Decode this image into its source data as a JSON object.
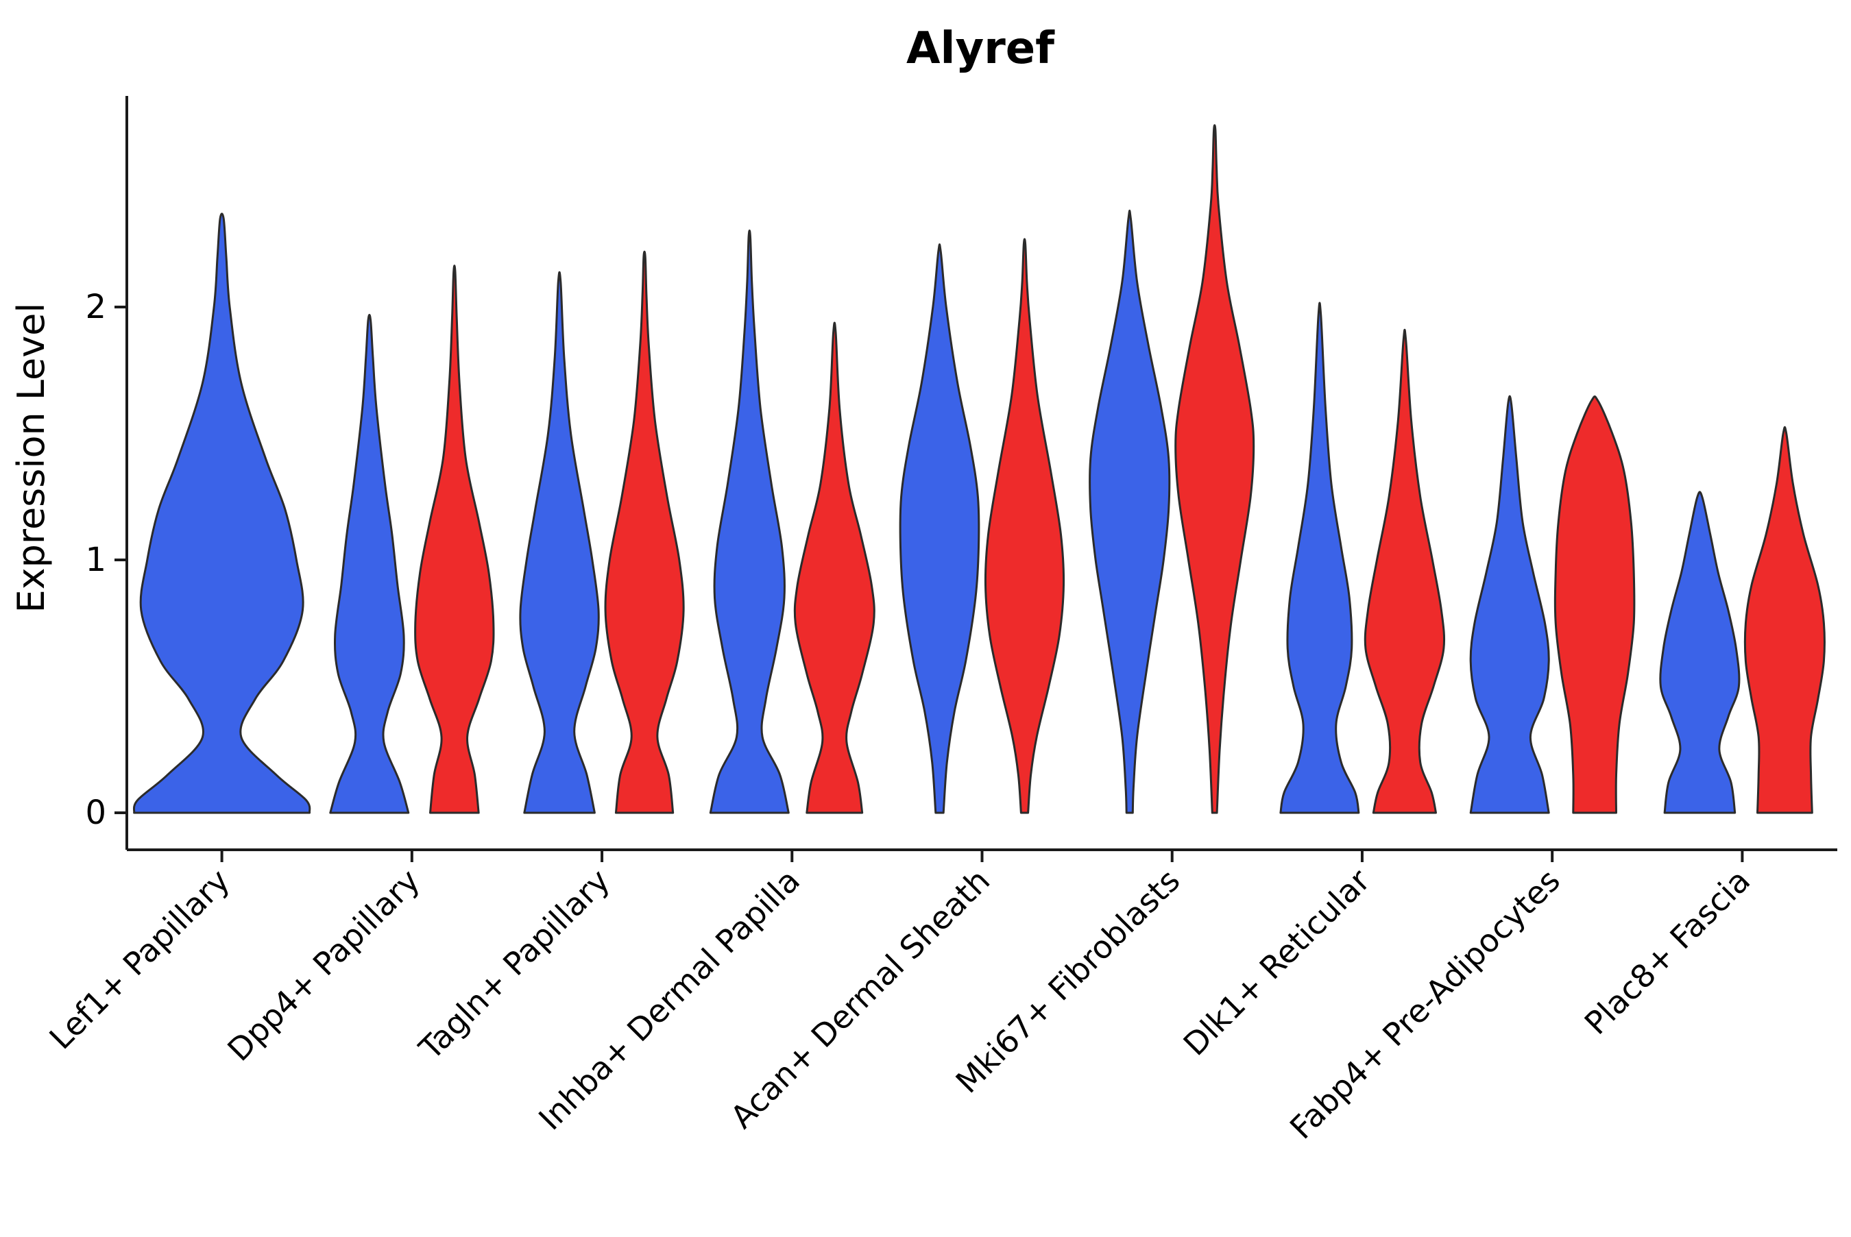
{
  "chart_data": {
    "type": "violin",
    "title": "Alyref",
    "ylabel": "Expression Level",
    "xlabel": "",
    "yticks": [
      0,
      1,
      2
    ],
    "ylim": [
      0,
      2.9
    ],
    "grid": false,
    "legend": "none",
    "colors": {
      "blue": "#3B63E8",
      "red": "#EE2B2B",
      "outline": "#2B2B2B"
    },
    "categories": [
      "Lef1+ Papillary",
      "Dpp4+ Papillary",
      "Tagln+ Papillary",
      "Inhba+ Dermal Papilla",
      "Acan+ Dermal Sheath",
      "Mki67+ Fibroblasts",
      "Dlk1+ Reticular",
      "Fabp4+ Pre-Adipocytes",
      "Plac8+ Fascia"
    ],
    "groups": [
      {
        "label": "Lef1+ Papillary",
        "violins": [
          {
            "split": "blue",
            "max": 2.35,
            "profile": [
              [
                0,
                1.0
              ],
              [
                0.05,
                0.96
              ],
              [
                0.15,
                0.62
              ],
              [
                0.3,
                0.22
              ],
              [
                0.45,
                0.38
              ],
              [
                0.6,
                0.7
              ],
              [
                0.8,
                0.92
              ],
              [
                1.0,
                0.85
              ],
              [
                1.2,
                0.72
              ],
              [
                1.4,
                0.5
              ],
              [
                1.7,
                0.22
              ],
              [
                2.0,
                0.09
              ],
              [
                2.2,
                0.05
              ],
              [
                2.35,
                0.02
              ]
            ]
          }
        ]
      },
      {
        "label": "Dpp4+ Papillary",
        "violins": [
          {
            "split": "blue",
            "max": 1.95,
            "profile": [
              [
                0,
                1.0
              ],
              [
                0.12,
                0.78
              ],
              [
                0.28,
                0.37
              ],
              [
                0.4,
                0.47
              ],
              [
                0.55,
                0.8
              ],
              [
                0.7,
                0.88
              ],
              [
                0.9,
                0.72
              ],
              [
                1.1,
                0.58
              ],
              [
                1.3,
                0.4
              ],
              [
                1.6,
                0.18
              ],
              [
                1.8,
                0.09
              ],
              [
                1.95,
                0.03
              ]
            ]
          },
          {
            "split": "red",
            "max": 2.14,
            "profile": [
              [
                0,
                0.62
              ],
              [
                0.15,
                0.52
              ],
              [
                0.3,
                0.33
              ],
              [
                0.45,
                0.63
              ],
              [
                0.6,
                0.94
              ],
              [
                0.75,
                1.0
              ],
              [
                0.95,
                0.88
              ],
              [
                1.15,
                0.63
              ],
              [
                1.4,
                0.29
              ],
              [
                1.7,
                0.13
              ],
              [
                1.95,
                0.06
              ],
              [
                2.14,
                0.02
              ]
            ]
          }
        ]
      },
      {
        "label": "Tagln+ Papillary",
        "violins": [
          {
            "split": "blue",
            "max": 2.1,
            "profile": [
              [
                0,
                0.9
              ],
              [
                0.15,
                0.7
              ],
              [
                0.32,
                0.38
              ],
              [
                0.5,
                0.67
              ],
              [
                0.65,
                0.93
              ],
              [
                0.8,
                1.0
              ],
              [
                1.0,
                0.84
              ],
              [
                1.2,
                0.62
              ],
              [
                1.5,
                0.29
              ],
              [
                1.8,
                0.12
              ],
              [
                2.1,
                0.03
              ]
            ]
          },
          {
            "split": "red",
            "max": 2.2,
            "profile": [
              [
                0,
                0.73
              ],
              [
                0.15,
                0.62
              ],
              [
                0.3,
                0.33
              ],
              [
                0.45,
                0.56
              ],
              [
                0.6,
                0.84
              ],
              [
                0.8,
                1.0
              ],
              [
                1.0,
                0.89
              ],
              [
                1.25,
                0.58
              ],
              [
                1.55,
                0.27
              ],
              [
                1.85,
                0.11
              ],
              [
                2.05,
                0.05
              ],
              [
                2.2,
                0.02
              ]
            ]
          }
        ]
      },
      {
        "label": "Inhba+ Dermal Papilla",
        "violins": [
          {
            "split": "blue",
            "max": 2.28,
            "profile": [
              [
                0,
                1.0
              ],
              [
                0.15,
                0.78
              ],
              [
                0.3,
                0.33
              ],
              [
                0.45,
                0.42
              ],
              [
                0.65,
                0.69
              ],
              [
                0.85,
                0.89
              ],
              [
                1.05,
                0.83
              ],
              [
                1.3,
                0.56
              ],
              [
                1.6,
                0.28
              ],
              [
                1.9,
                0.13
              ],
              [
                2.1,
                0.06
              ],
              [
                2.28,
                0.02
              ]
            ]
          },
          {
            "split": "red",
            "max": 1.9,
            "profile": [
              [
                0,
                0.71
              ],
              [
                0.12,
                0.6
              ],
              [
                0.28,
                0.31
              ],
              [
                0.4,
                0.43
              ],
              [
                0.55,
                0.71
              ],
              [
                0.75,
                1.0
              ],
              [
                0.9,
                0.95
              ],
              [
                1.1,
                0.67
              ],
              [
                1.3,
                0.36
              ],
              [
                1.6,
                0.13
              ],
              [
                1.9,
                0.03
              ]
            ]
          }
        ]
      },
      {
        "label": "Acan+ Dermal Sheath",
        "violins": [
          {
            "split": "blue",
            "max": 2.22,
            "profile": [
              [
                0,
                0.1
              ],
              [
                0.2,
                0.19
              ],
              [
                0.4,
                0.38
              ],
              [
                0.6,
                0.67
              ],
              [
                0.85,
                0.92
              ],
              [
                1.05,
                1.0
              ],
              [
                1.25,
                0.98
              ],
              [
                1.45,
                0.79
              ],
              [
                1.7,
                0.46
              ],
              [
                2.0,
                0.17
              ],
              [
                2.22,
                0.03
              ]
            ]
          },
          {
            "split": "red",
            "max": 2.25,
            "profile": [
              [
                0,
                0.09
              ],
              [
                0.15,
                0.16
              ],
              [
                0.3,
                0.31
              ],
              [
                0.5,
                0.62
              ],
              [
                0.7,
                0.89
              ],
              [
                0.9,
                1.0
              ],
              [
                1.1,
                0.93
              ],
              [
                1.35,
                0.67
              ],
              [
                1.65,
                0.33
              ],
              [
                1.95,
                0.13
              ],
              [
                2.1,
                0.06
              ],
              [
                2.25,
                0.02
              ]
            ]
          }
        ]
      },
      {
        "label": "Mki67+ Fibroblasts",
        "violins": [
          {
            "split": "blue",
            "max": 2.35,
            "profile": [
              [
                0,
                0.08
              ],
              [
                0.1,
                0.1
              ],
              [
                0.3,
                0.19
              ],
              [
                0.55,
                0.42
              ],
              [
                0.8,
                0.67
              ],
              [
                1.0,
                0.87
              ],
              [
                1.2,
                1.0
              ],
              [
                1.4,
                1.0
              ],
              [
                1.6,
                0.81
              ],
              [
                1.85,
                0.48
              ],
              [
                2.1,
                0.19
              ],
              [
                2.35,
                0.03
              ]
            ]
          },
          {
            "split": "red",
            "max": 2.7,
            "profile": [
              [
                0,
                0.06
              ],
              [
                0.25,
                0.13
              ],
              [
                0.5,
                0.25
              ],
              [
                0.75,
                0.42
              ],
              [
                1.0,
                0.67
              ],
              [
                1.25,
                0.92
              ],
              [
                1.45,
                1.0
              ],
              [
                1.6,
                0.92
              ],
              [
                1.85,
                0.63
              ],
              [
                2.1,
                0.31
              ],
              [
                2.4,
                0.1
              ],
              [
                2.55,
                0.05
              ],
              [
                2.7,
                0.02
              ]
            ]
          }
        ]
      },
      {
        "label": "Dlk1+ Reticular",
        "violins": [
          {
            "split": "blue",
            "max": 1.97,
            "profile": [
              [
                0,
                1.0
              ],
              [
                0.08,
                0.91
              ],
              [
                0.2,
                0.55
              ],
              [
                0.35,
                0.42
              ],
              [
                0.5,
                0.67
              ],
              [
                0.65,
                0.82
              ],
              [
                0.85,
                0.76
              ],
              [
                1.05,
                0.55
              ],
              [
                1.3,
                0.3
              ],
              [
                1.6,
                0.15
              ],
              [
                1.97,
                0.03
              ]
            ]
          },
          {
            "split": "red",
            "max": 1.87,
            "profile": [
              [
                0,
                0.8
              ],
              [
                0.08,
                0.69
              ],
              [
                0.2,
                0.4
              ],
              [
                0.35,
                0.43
              ],
              [
                0.5,
                0.74
              ],
              [
                0.65,
                1.0
              ],
              [
                0.8,
                0.94
              ],
              [
                1.0,
                0.71
              ],
              [
                1.25,
                0.4
              ],
              [
                1.55,
                0.17
              ],
              [
                1.87,
                0.03
              ]
            ]
          }
        ]
      },
      {
        "label": "Fabp4+ Pre-Adipocytes",
        "violins": [
          {
            "split": "blue",
            "max": 1.62,
            "profile": [
              [
                0,
                1.0
              ],
              [
                0.15,
                0.83
              ],
              [
                0.3,
                0.53
              ],
              [
                0.45,
                0.87
              ],
              [
                0.6,
                1.0
              ],
              [
                0.75,
                0.9
              ],
              [
                0.95,
                0.6
              ],
              [
                1.15,
                0.33
              ],
              [
                1.4,
                0.17
              ],
              [
                1.62,
                0.04
              ]
            ]
          },
          {
            "split": "red",
            "max": 1.63,
            "profile": [
              [
                0,
                0.55
              ],
              [
                0.15,
                0.55
              ],
              [
                0.35,
                0.63
              ],
              [
                0.55,
                0.85
              ],
              [
                0.75,
                1.0
              ],
              [
                0.95,
                1.0
              ],
              [
                1.15,
                0.93
              ],
              [
                1.35,
                0.75
              ],
              [
                1.5,
                0.45
              ],
              [
                1.63,
                0.08
              ]
            ]
          }
        ]
      },
      {
        "label": "Plac8+ Fascia",
        "violins": [
          {
            "split": "blue",
            "max": 1.25,
            "profile": [
              [
                0,
                0.9
              ],
              [
                0.12,
                0.8
              ],
              [
                0.25,
                0.5
              ],
              [
                0.38,
                0.73
              ],
              [
                0.5,
                1.0
              ],
              [
                0.65,
                0.93
              ],
              [
                0.8,
                0.73
              ],
              [
                0.95,
                0.47
              ],
              [
                1.1,
                0.27
              ],
              [
                1.25,
                0.06
              ]
            ]
          },
          {
            "split": "red",
            "max": 1.5,
            "profile": [
              [
                0,
                0.7
              ],
              [
                0.15,
                0.67
              ],
              [
                0.3,
                0.67
              ],
              [
                0.45,
                0.85
              ],
              [
                0.6,
                1.0
              ],
              [
                0.75,
                1.0
              ],
              [
                0.9,
                0.85
              ],
              [
                1.1,
                0.48
              ],
              [
                1.3,
                0.21
              ],
              [
                1.5,
                0.04
              ]
            ]
          }
        ]
      }
    ]
  }
}
